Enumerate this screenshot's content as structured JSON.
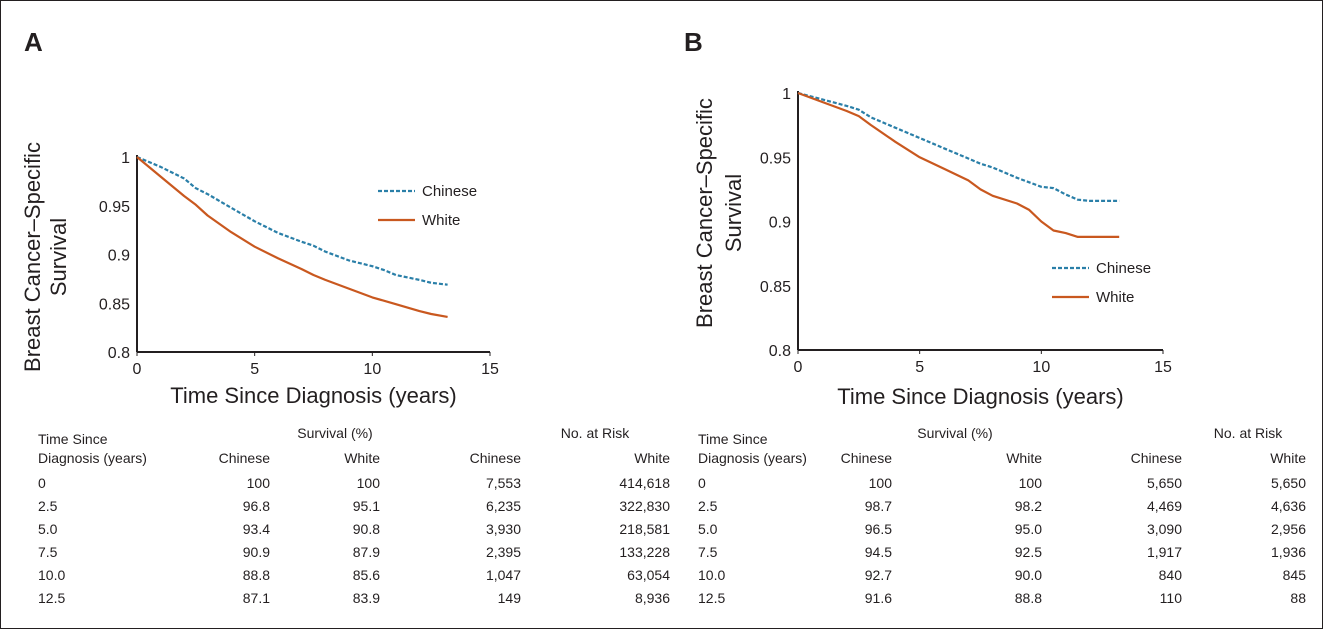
{
  "panels": [
    {
      "label": "A"
    },
    {
      "label": "B"
    }
  ],
  "colors": {
    "chinese": "#2a7fa8",
    "white": "#c9581f",
    "axis": "#231f20"
  },
  "chart_data": [
    {
      "type": "line",
      "panel": "A",
      "xlabel": "Time Since Diagnosis (years)",
      "ylabel": [
        "Breast Cancer–Specific",
        "Survival"
      ],
      "xlim": [
        0,
        15
      ],
      "ylim": [
        0.8,
        1.0
      ],
      "xticks": [
        "0",
        "5",
        "10",
        "15"
      ],
      "yticks": [
        "0.8",
        "0.85",
        "0.9",
        "0.95",
        "1"
      ],
      "legend": {
        "placement": "top-right"
      },
      "series": [
        {
          "name": "Chinese",
          "style": "dashed",
          "x": [
            0,
            1,
            2,
            2.5,
            3,
            4,
            5,
            6,
            7,
            7.5,
            8,
            9,
            10,
            10.5,
            11,
            12,
            12.5,
            13.2
          ],
          "y": [
            1,
            0.99,
            0.978,
            0.968,
            0.962,
            0.948,
            0.934,
            0.922,
            0.913,
            0.909,
            0.903,
            0.894,
            0.888,
            0.884,
            0.879,
            0.874,
            0.871,
            0.869
          ]
        },
        {
          "name": "White",
          "style": "solid",
          "x": [
            0,
            1,
            2,
            2.5,
            3,
            4,
            5,
            6,
            7,
            7.5,
            8,
            9,
            10,
            11,
            12,
            12.5,
            13.2
          ],
          "y": [
            1,
            0.98,
            0.96,
            0.951,
            0.94,
            0.923,
            0.908,
            0.896,
            0.885,
            0.879,
            0.874,
            0.865,
            0.856,
            0.849,
            0.842,
            0.839,
            0.836
          ]
        }
      ],
      "table": {
        "col_time": [
          "Time Since",
          "Diagnosis (years)"
        ],
        "group_survival": "Survival (%)",
        "group_risk": "No. at Risk",
        "col_chinese": "Chinese",
        "col_white": "White",
        "rows": [
          [
            "0",
            "100",
            "100",
            "7,553",
            "414,618"
          ],
          [
            "2.5",
            "96.8",
            "95.1",
            "6,235",
            "322,830"
          ],
          [
            "5.0",
            "93.4",
            "90.8",
            "3,930",
            "218,581"
          ],
          [
            "7.5",
            "90.9",
            "87.9",
            "2,395",
            "133,228"
          ],
          [
            "10.0",
            "88.8",
            "85.6",
            "1,047",
            "63,054"
          ],
          [
            "12.5",
            "87.1",
            "83.9",
            "149",
            "8,936"
          ]
        ]
      }
    },
    {
      "type": "line",
      "panel": "B",
      "xlabel": "Time Since Diagnosis (years)",
      "ylabel": [
        "Breast Cancer–Specific",
        "Survival"
      ],
      "xlim": [
        0,
        15
      ],
      "ylim": [
        0.8,
        1.0
      ],
      "xticks": [
        "0",
        "5",
        "10",
        "15"
      ],
      "yticks": [
        "0.8",
        "0.85",
        "0.9",
        "0.95",
        "1"
      ],
      "legend": {
        "placement": "center-right"
      },
      "series": [
        {
          "name": "Chinese",
          "style": "dashed",
          "x": [
            0,
            1,
            2,
            2.5,
            3,
            4,
            5,
            6,
            7,
            7.5,
            8,
            9,
            10,
            10.5,
            11,
            11.5,
            12,
            12.5,
            13.2
          ],
          "y": [
            1,
            0.995,
            0.99,
            0.987,
            0.981,
            0.973,
            0.965,
            0.957,
            0.949,
            0.945,
            0.942,
            0.934,
            0.927,
            0.926,
            0.921,
            0.917,
            0.916,
            0.916,
            0.916
          ]
        },
        {
          "name": "White",
          "style": "solid",
          "x": [
            0,
            1,
            2,
            2.5,
            3,
            4,
            5,
            6,
            7,
            7.5,
            8,
            9,
            9.5,
            10,
            10.5,
            11,
            11.5,
            12,
            12.5,
            13.2
          ],
          "y": [
            1,
            0.993,
            0.986,
            0.982,
            0.975,
            0.962,
            0.95,
            0.941,
            0.932,
            0.925,
            0.92,
            0.914,
            0.909,
            0.9,
            0.893,
            0.891,
            0.888,
            0.888,
            0.888,
            0.888
          ]
        }
      ],
      "table": {
        "col_time": [
          "Time Since",
          "Diagnosis (years)"
        ],
        "group_survival": "Survival (%)",
        "group_risk": "No. at Risk",
        "col_chinese": "Chinese",
        "col_white": "White",
        "rows": [
          [
            "0",
            "100",
            "100",
            "5,650",
            "5,650"
          ],
          [
            "2.5",
            "98.7",
            "98.2",
            "4,469",
            "4,636"
          ],
          [
            "5.0",
            "96.5",
            "95.0",
            "3,090",
            "2,956"
          ],
          [
            "7.5",
            "94.5",
            "92.5",
            "1,917",
            "1,936"
          ],
          [
            "10.0",
            "92.7",
            "90.0",
            "840",
            "845"
          ],
          [
            "12.5",
            "91.6",
            "88.8",
            "110",
            "88"
          ]
        ]
      }
    }
  ]
}
